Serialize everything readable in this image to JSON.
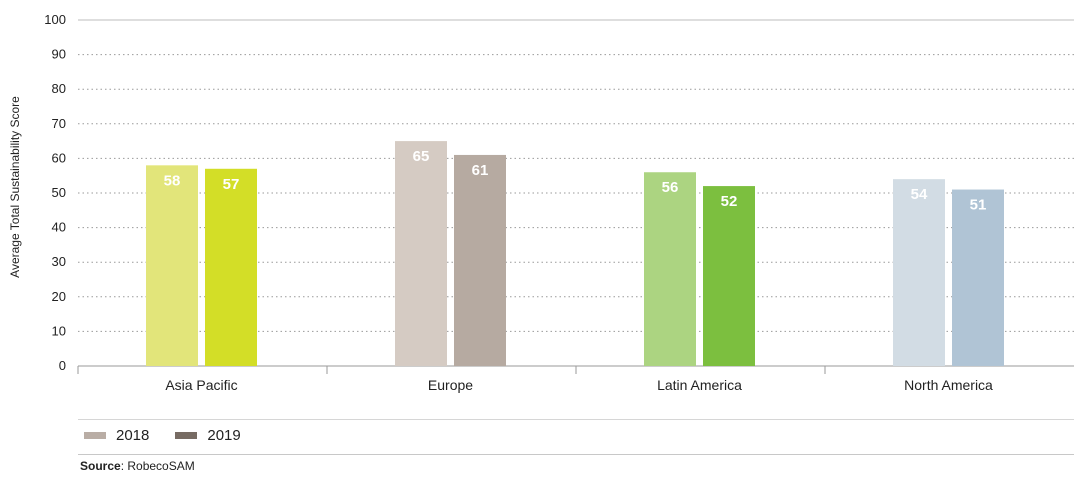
{
  "chart_data": {
    "type": "bar",
    "ylabel": "Average Total Sustainability Score",
    "ylim": [
      0,
      100
    ],
    "yticks": [
      0,
      10,
      20,
      30,
      40,
      50,
      60,
      70,
      80,
      90,
      100
    ],
    "categories": [
      "Asia Pacific",
      "Europe",
      "Latin America",
      "North America"
    ],
    "series": [
      {
        "name": "2018",
        "values": [
          58,
          65,
          56,
          54
        ]
      },
      {
        "name": "2019",
        "values": [
          57,
          61,
          52,
          51
        ]
      }
    ],
    "bar_colors": [
      [
        "#e2e57a",
        "#d3de27"
      ],
      [
        "#d5cbc3",
        "#b6aaa1"
      ],
      [
        "#acd481",
        "#7cbf3f"
      ],
      [
        "#d2dce4",
        "#b0c4d5"
      ]
    ],
    "legend_colors": [
      "#b9ada5",
      "#776b63"
    ],
    "grid": "dotted",
    "legend_position": "bottom-left"
  },
  "source": {
    "label": "Source",
    "text": ": RobecoSAM"
  }
}
